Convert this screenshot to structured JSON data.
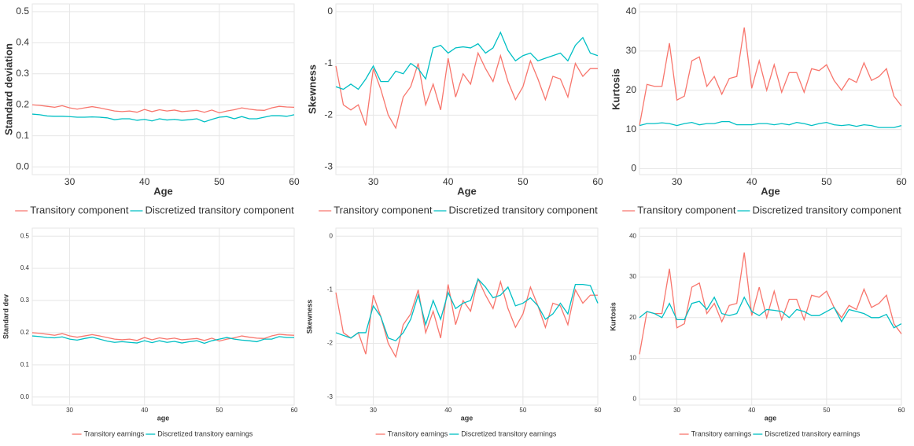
{
  "chart_data": [
    {
      "type": "line",
      "y_label": "Standard deviation",
      "x_label": "Age",
      "x": [
        25,
        26,
        27,
        28,
        29,
        30,
        31,
        32,
        33,
        34,
        35,
        36,
        37,
        38,
        39,
        40,
        41,
        42,
        43,
        44,
        45,
        46,
        47,
        48,
        49,
        50,
        51,
        52,
        53,
        54,
        55,
        56,
        57,
        58,
        59,
        60
      ],
      "xlim": [
        25,
        60
      ],
      "xticks": [
        30,
        40,
        50,
        60
      ],
      "ylim": [
        -0.025,
        0.525
      ],
      "yticks": [
        {
          "value": 0,
          "label": "0.0"
        },
        0.1,
        0.2,
        0.3,
        0.4,
        0.5
      ],
      "grid": true,
      "series": [
        {
          "name": "Transitory component",
          "color": "#F8766D",
          "values": [
            0.2,
            0.198,
            0.195,
            0.192,
            0.197,
            0.19,
            0.186,
            0.19,
            0.194,
            0.19,
            0.185,
            0.18,
            0.178,
            0.18,
            0.176,
            0.185,
            0.178,
            0.184,
            0.18,
            0.183,
            0.178,
            0.18,
            0.182,
            0.176,
            0.183,
            0.174,
            0.18,
            0.184,
            0.19,
            0.186,
            0.183,
            0.182,
            0.19,
            0.195,
            0.193,
            0.192
          ]
        },
        {
          "name": "Discretized transitory component",
          "color": "#00BFC4",
          "values": [
            0.17,
            0.168,
            0.164,
            0.163,
            0.163,
            0.162,
            0.16,
            0.16,
            0.161,
            0.16,
            0.158,
            0.152,
            0.155,
            0.155,
            0.15,
            0.153,
            0.148,
            0.155,
            0.151,
            0.153,
            0.15,
            0.152,
            0.155,
            0.145,
            0.153,
            0.16,
            0.162,
            0.155,
            0.162,
            0.155,
            0.155,
            0.16,
            0.165,
            0.165,
            0.163,
            0.168
          ]
        }
      ]
    },
    {
      "type": "line",
      "y_label": "Skewness",
      "x_label": "Age",
      "x": [
        25,
        26,
        27,
        28,
        29,
        30,
        31,
        32,
        33,
        34,
        35,
        36,
        37,
        38,
        39,
        40,
        41,
        42,
        43,
        44,
        45,
        46,
        47,
        48,
        49,
        50,
        51,
        52,
        53,
        54,
        55,
        56,
        57,
        58,
        59,
        60
      ],
      "xlim": [
        25,
        60
      ],
      "xticks": [
        30,
        40,
        50,
        60
      ],
      "ylim": [
        -3.15,
        0.15
      ],
      "yticks": [
        -3,
        -2,
        -1,
        0
      ],
      "grid": true,
      "series": [
        {
          "name": "Transitory component",
          "color": "#F8766D",
          "values": [
            -1.05,
            -1.8,
            -1.9,
            -1.8,
            -2.2,
            -1.1,
            -1.5,
            -2.0,
            -2.25,
            -1.65,
            -1.45,
            -1.0,
            -1.8,
            -1.4,
            -1.9,
            -0.9,
            -1.65,
            -1.2,
            -1.4,
            -0.8,
            -1.1,
            -1.35,
            -0.85,
            -1.35,
            -1.7,
            -1.45,
            -0.95,
            -1.3,
            -1.7,
            -1.25,
            -1.3,
            -1.65,
            -1.0,
            -1.25,
            -1.1,
            -1.1
          ]
        },
        {
          "name": "Discretized transitory component",
          "color": "#00BFC4",
          "values": [
            -1.45,
            -1.5,
            -1.4,
            -1.5,
            -1.3,
            -1.05,
            -1.35,
            -1.35,
            -1.15,
            -1.2,
            -1.0,
            -1.1,
            -1.3,
            -0.7,
            -0.65,
            -0.8,
            -0.7,
            -0.68,
            -0.7,
            -0.62,
            -0.8,
            -0.7,
            -0.4,
            -0.75,
            -0.95,
            -0.85,
            -0.8,
            -0.95,
            -0.9,
            -0.85,
            -0.8,
            -0.95,
            -0.65,
            -0.5,
            -0.8,
            -0.85
          ]
        }
      ]
    },
    {
      "type": "line",
      "y_label": "Kurtosis",
      "x_label": "Age",
      "x": [
        25,
        26,
        27,
        28,
        29,
        30,
        31,
        32,
        33,
        34,
        35,
        36,
        37,
        38,
        39,
        40,
        41,
        42,
        43,
        44,
        45,
        46,
        47,
        48,
        49,
        50,
        51,
        52,
        53,
        54,
        55,
        56,
        57,
        58,
        59,
        60
      ],
      "xlim": [
        25,
        60
      ],
      "xticks": [
        30,
        40,
        50,
        60
      ],
      "ylim": [
        -1.5,
        42
      ],
      "yticks": [
        0,
        10,
        20,
        30,
        40
      ],
      "grid": true,
      "series": [
        {
          "name": "Transitory component",
          "color": "#F8766D",
          "values": [
            11,
            21.5,
            21,
            21,
            32,
            17.5,
            18.5,
            27.5,
            28.5,
            21,
            23.5,
            19,
            23,
            23.5,
            36,
            20.5,
            27.5,
            20,
            26.5,
            19.5,
            24.5,
            24.5,
            19.5,
            25.5,
            25,
            26.5,
            22.5,
            20,
            23,
            22,
            27,
            22.5,
            23.5,
            25.5,
            18.5,
            16
          ]
        },
        {
          "name": "Discretized transitory component",
          "color": "#00BFC4",
          "values": [
            11,
            11.5,
            11.5,
            11.7,
            11.5,
            11,
            11.5,
            11.8,
            11.2,
            11.5,
            11.5,
            12,
            12,
            11.2,
            11.2,
            11.2,
            11.5,
            11.5,
            11.2,
            11.5,
            11.2,
            11.8,
            11.5,
            11,
            11.5,
            11.8,
            11.2,
            11,
            11.2,
            10.8,
            11.2,
            11,
            10.5,
            10.5,
            10.5,
            11
          ]
        }
      ]
    },
    {
      "type": "line",
      "y_label": "Standard dev",
      "x_label": "age",
      "x": [
        25,
        26,
        27,
        28,
        29,
        30,
        31,
        32,
        33,
        34,
        35,
        36,
        37,
        38,
        39,
        40,
        41,
        42,
        43,
        44,
        45,
        46,
        47,
        48,
        49,
        50,
        51,
        52,
        53,
        54,
        55,
        56,
        57,
        58,
        59,
        60
      ],
      "xlim": [
        25,
        60
      ],
      "xticks": [
        30,
        40,
        50,
        60
      ],
      "ylim": [
        -0.025,
        0.525
      ],
      "yticks": [
        {
          "value": 0,
          "label": "0.0"
        },
        0.1,
        0.2,
        0.3,
        0.4,
        0.5
      ],
      "grid": true,
      "series": [
        {
          "name": "Transitory earnings",
          "color": "#F8766D",
          "values": [
            0.2,
            0.198,
            0.195,
            0.192,
            0.197,
            0.19,
            0.186,
            0.19,
            0.194,
            0.19,
            0.185,
            0.18,
            0.178,
            0.18,
            0.176,
            0.185,
            0.178,
            0.184,
            0.18,
            0.183,
            0.178,
            0.18,
            0.182,
            0.176,
            0.183,
            0.174,
            0.18,
            0.184,
            0.19,
            0.186,
            0.183,
            0.182,
            0.19,
            0.195,
            0.193,
            0.192
          ]
        },
        {
          "name": "Discretized transitory earnings",
          "color": "#00BFC4",
          "values": [
            0.19,
            0.188,
            0.185,
            0.184,
            0.187,
            0.18,
            0.177,
            0.182,
            0.186,
            0.18,
            0.174,
            0.17,
            0.172,
            0.17,
            0.168,
            0.175,
            0.169,
            0.175,
            0.17,
            0.173,
            0.168,
            0.172,
            0.175,
            0.167,
            0.175,
            0.18,
            0.185,
            0.18,
            0.177,
            0.175,
            0.172,
            0.18,
            0.18,
            0.188,
            0.185,
            0.185
          ]
        }
      ]
    },
    {
      "type": "line",
      "y_label": "Skewness",
      "x_label": "age",
      "x": [
        25,
        26,
        27,
        28,
        29,
        30,
        31,
        32,
        33,
        34,
        35,
        36,
        37,
        38,
        39,
        40,
        41,
        42,
        43,
        44,
        45,
        46,
        47,
        48,
        49,
        50,
        51,
        52,
        53,
        54,
        55,
        56,
        57,
        58,
        59,
        60
      ],
      "xlim": [
        25,
        60
      ],
      "xticks": [
        30,
        40,
        50,
        60
      ],
      "ylim": [
        -3.15,
        0.15
      ],
      "yticks": [
        -3,
        -2,
        -1,
        0
      ],
      "grid": true,
      "series": [
        {
          "name": "Transitory earnings",
          "color": "#F8766D",
          "values": [
            -1.05,
            -1.8,
            -1.9,
            -1.8,
            -2.2,
            -1.1,
            -1.5,
            -2.0,
            -2.25,
            -1.65,
            -1.45,
            -1.0,
            -1.8,
            -1.4,
            -1.9,
            -0.9,
            -1.65,
            -1.2,
            -1.4,
            -0.8,
            -1.1,
            -1.35,
            -0.85,
            -1.35,
            -1.7,
            -1.45,
            -0.95,
            -1.3,
            -1.7,
            -1.25,
            -1.3,
            -1.65,
            -1.0,
            -1.25,
            -1.1,
            -1.1
          ]
        },
        {
          "name": "Discretized transitory earnings",
          "color": "#00BFC4",
          "values": [
            -1.8,
            -1.85,
            -1.9,
            -1.8,
            -1.8,
            -1.3,
            -1.5,
            -1.9,
            -1.95,
            -1.8,
            -1.55,
            -1.1,
            -1.65,
            -1.2,
            -1.55,
            -1.05,
            -1.35,
            -1.25,
            -1.2,
            -0.8,
            -0.95,
            -1.15,
            -1.1,
            -0.95,
            -1.3,
            -1.25,
            -1.15,
            -1.3,
            -1.55,
            -1.45,
            -1.25,
            -1.45,
            -0.9,
            -0.9,
            -0.92,
            -1.25
          ]
        }
      ]
    },
    {
      "type": "line",
      "y_label": "Kurtosis",
      "x_label": "age",
      "x": [
        25,
        26,
        27,
        28,
        29,
        30,
        31,
        32,
        33,
        34,
        35,
        36,
        37,
        38,
        39,
        40,
        41,
        42,
        43,
        44,
        45,
        46,
        47,
        48,
        49,
        50,
        51,
        52,
        53,
        54,
        55,
        56,
        57,
        58,
        59,
        60
      ],
      "xlim": [
        25,
        60
      ],
      "xticks": [
        30,
        40,
        50,
        60
      ],
      "ylim": [
        -1.5,
        42
      ],
      "yticks": [
        0,
        10,
        20,
        30,
        40
      ],
      "grid": true,
      "series": [
        {
          "name": "Transitory earnings",
          "color": "#F8766D",
          "values": [
            11,
            21.5,
            21,
            21,
            32,
            17.5,
            18.5,
            27.5,
            28.5,
            21,
            23.5,
            19,
            23,
            23.5,
            36,
            20.5,
            27.5,
            20,
            26.5,
            19.5,
            24.5,
            24.5,
            19.5,
            25.5,
            25,
            26.5,
            22.5,
            20,
            23,
            22,
            27,
            22.5,
            23.5,
            25.5,
            18.5,
            16
          ]
        },
        {
          "name": "Discretized transitory earnings",
          "color": "#00BFC4",
          "values": [
            20,
            21.5,
            21,
            20,
            23.5,
            19.5,
            19.5,
            23.5,
            24,
            22,
            25,
            21,
            20.5,
            21,
            25,
            21.5,
            20.5,
            22,
            21.8,
            21.5,
            20,
            22,
            21.5,
            20.5,
            20.5,
            21.5,
            22.5,
            19,
            22,
            21.5,
            21,
            20,
            20,
            20.8,
            17.5,
            18.5
          ]
        }
      ]
    }
  ]
}
